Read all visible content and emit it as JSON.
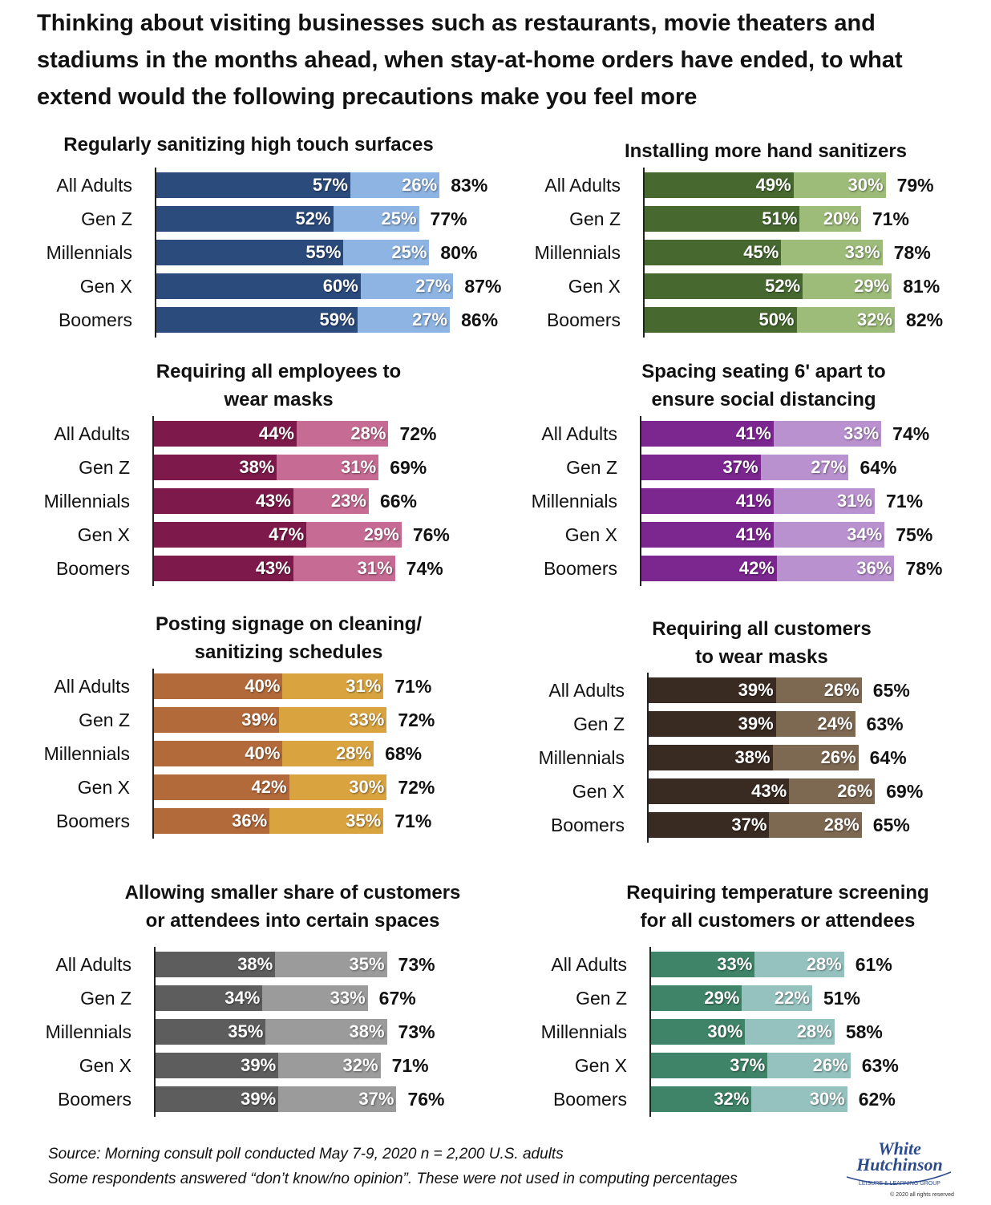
{
  "title": "Thinking about visiting businesses such as restaurants, movie theaters and stadiums in the months ahead, when stay-at-home orders have ended, to what extend would the following precautions make you feel more",
  "footnote": {
    "line1": "Source: Morning consult poll conducted May 7-9, 2020  n = 2,200 U.S. adults",
    "line2": "Some respondents answered “don’t know/no opinion”.  These were not used in computing percentages"
  },
  "logo": {
    "line1": "White",
    "line2": "Hutchinson",
    "tagline": "LEISURE & LEARNING GROUP",
    "rights": "© 2020 all rights reserved"
  },
  "chart_data": [
    {
      "type": "bar",
      "title": [
        "Regularly sanitizing high touch surfaces"
      ],
      "categories": [
        "All Adults",
        "Gen Z",
        "Millennials",
        "Gen X",
        "Boomers"
      ],
      "series": [
        {
          "values": [
            57,
            52,
            55,
            60,
            59
          ]
        },
        {
          "values": [
            26,
            25,
            25,
            27,
            27
          ]
        }
      ],
      "totals": [
        83,
        77,
        80,
        87,
        86
      ],
      "colors": [
        "#2b4b7c",
        "#8db4e2"
      ]
    },
    {
      "type": "bar",
      "title": [
        "Installing more hand sanitizers"
      ],
      "categories": [
        "All Adults",
        "Gen Z",
        "Millennials",
        "Gen X",
        "Boomers"
      ],
      "series": [
        {
          "values": [
            49,
            51,
            45,
            52,
            50
          ]
        },
        {
          "values": [
            30,
            20,
            33,
            29,
            32
          ]
        }
      ],
      "totals": [
        79,
        71,
        78,
        81,
        82
      ],
      "colors": [
        "#476930",
        "#9dbb79"
      ]
    },
    {
      "type": "bar",
      "title": [
        "Requiring all employees to",
        "wear masks"
      ],
      "categories": [
        "All Adults",
        "Gen Z",
        "Millennials",
        "Gen X",
        "Boomers"
      ],
      "series": [
        {
          "values": [
            44,
            38,
            43,
            47,
            43
          ]
        },
        {
          "values": [
            28,
            31,
            23,
            29,
            31
          ]
        }
      ],
      "totals": [
        72,
        69,
        66,
        76,
        74
      ],
      "colors": [
        "#7e1a4b",
        "#c66b93"
      ]
    },
    {
      "type": "bar",
      "title": [
        "Spacing seating 6' apart to",
        "ensure social distancing"
      ],
      "categories": [
        "All Adults",
        "Gen Z",
        "Millennials",
        "Gen X",
        "Boomers"
      ],
      "series": [
        {
          "values": [
            41,
            37,
            41,
            41,
            42
          ]
        },
        {
          "values": [
            33,
            27,
            31,
            34,
            36
          ]
        }
      ],
      "totals": [
        74,
        64,
        71,
        75,
        78
      ],
      "colors": [
        "#7c2690",
        "#b991cf"
      ]
    },
    {
      "type": "bar",
      "title": [
        "Posting signage on cleaning/",
        "sanitizing schedules"
      ],
      "categories": [
        "All Adults",
        "Gen Z",
        "Millennials",
        "Gen X",
        "Boomers"
      ],
      "series": [
        {
          "values": [
            40,
            39,
            40,
            42,
            36
          ]
        },
        {
          "values": [
            31,
            33,
            28,
            30,
            35
          ]
        }
      ],
      "totals": [
        71,
        72,
        68,
        72,
        71
      ],
      "colors": [
        "#b36a3b",
        "#d9a440"
      ]
    },
    {
      "type": "bar",
      "title": [
        "Requiring all customers",
        "to wear masks"
      ],
      "categories": [
        "All Adults",
        "Gen Z",
        "Millennials",
        "Gen X",
        "Boomers"
      ],
      "series": [
        {
          "values": [
            39,
            39,
            38,
            43,
            37
          ]
        },
        {
          "values": [
            26,
            24,
            26,
            26,
            28
          ]
        }
      ],
      "totals": [
        65,
        63,
        64,
        69,
        65
      ],
      "colors": [
        "#3a2b22",
        "#7d6852"
      ]
    },
    {
      "type": "bar",
      "title": [
        "Allowing smaller share of customers",
        "or attendees into certain spaces"
      ],
      "categories": [
        "All Adults",
        "Gen Z",
        "Millennials",
        "Gen X",
        "Boomers"
      ],
      "series": [
        {
          "values": [
            38,
            34,
            35,
            39,
            39
          ]
        },
        {
          "values": [
            35,
            33,
            38,
            32,
            37
          ]
        }
      ],
      "totals": [
        73,
        67,
        73,
        71,
        76
      ],
      "colors": [
        "#5d5d5d",
        "#9b9b9b"
      ]
    },
    {
      "type": "bar",
      "title": [
        "Requiring temperature screening",
        "for all customers or attendees"
      ],
      "categories": [
        "All Adults",
        "Gen Z",
        "Millennials",
        "Gen X",
        "Boomers"
      ],
      "series": [
        {
          "values": [
            33,
            29,
            30,
            37,
            32
          ]
        },
        {
          "values": [
            28,
            22,
            28,
            26,
            30
          ]
        }
      ],
      "totals": [
        61,
        51,
        58,
        63,
        62
      ],
      "colors": [
        "#3f8468",
        "#95c2bf"
      ]
    }
  ]
}
